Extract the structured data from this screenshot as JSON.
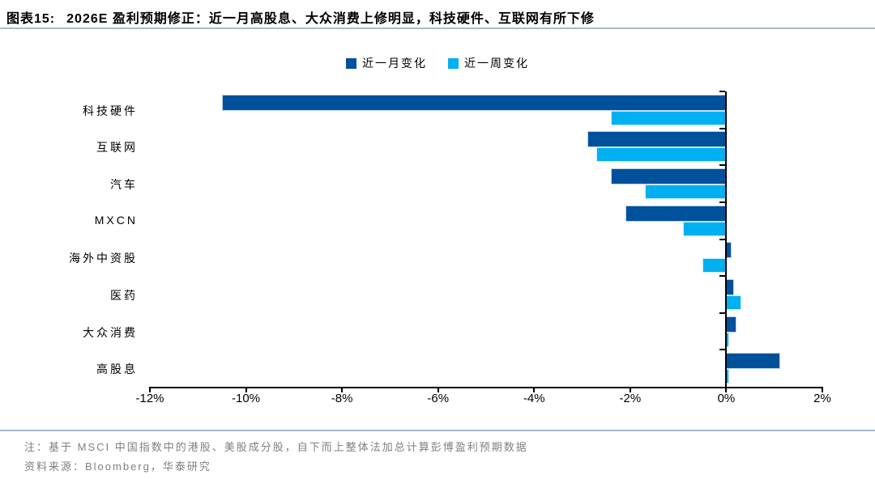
{
  "figure": {
    "label": "图表15:",
    "title": "2026E 盈利预期修正：近一月高股息、大众消费上修明显，科技硬件、互联网有所下修"
  },
  "chart_data": {
    "type": "bar",
    "orientation": "horizontal",
    "title": "2026E 盈利预期修正",
    "categories": [
      "科技硬件",
      "互联网",
      "汽车",
      "MXCN",
      "海外中资股",
      "医药",
      "大众消费",
      "高股息"
    ],
    "series": [
      {
        "name": "近一月变化",
        "color": "#00519C",
        "values": [
          -10.5,
          -2.9,
          -2.4,
          -2.1,
          0.1,
          0.15,
          0.2,
          1.1
        ]
      },
      {
        "name": "近一周变化",
        "color": "#00B0F0",
        "values": [
          -2.4,
          -2.7,
          -1.7,
          -0.9,
          -0.5,
          0.3,
          0.05,
          0.05
        ]
      }
    ],
    "unit": "%",
    "xlim": [
      -12,
      2
    ],
    "x_ticks": [
      {
        "value": -12,
        "label": "-12%"
      },
      {
        "value": -10,
        "label": "-10%"
      },
      {
        "value": -8,
        "label": "-8%"
      },
      {
        "value": -6,
        "label": "-6%"
      },
      {
        "value": -4,
        "label": "-4%"
      },
      {
        "value": -2,
        "label": "-2%"
      },
      {
        "value": 0,
        "label": "0%"
      },
      {
        "value": 2,
        "label": "2%"
      }
    ],
    "legend_position": "top",
    "grid": false
  },
  "notes": {
    "note": "注：基于 MSCI 中国指数中的港股、美股成分股，自下而上整体法加总计算彭博盈利预期数据",
    "source": "资料来源：Bloomberg，华泰研究"
  },
  "colors": {
    "month_series": "#00519C",
    "week_series": "#00B0F0",
    "divider": "#A7BACB",
    "note_text": "#7F7F7F",
    "axis": "#000000"
  }
}
